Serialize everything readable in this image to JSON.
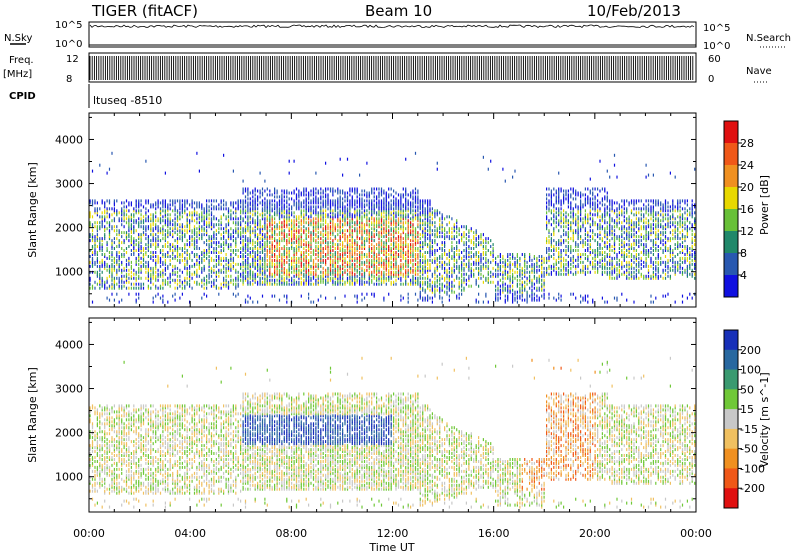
{
  "header": {
    "radar": "TIGER (fitACF)",
    "beam": "Beam 10",
    "date": "10/Feb/2013"
  },
  "param_panel": {
    "nsky_label": "N.Sky",
    "nsky_ticks": [
      "10^5",
      "10^0"
    ],
    "nsearch_label": "N.Search",
    "nsearch_ticks": [
      "10^5",
      "10^0"
    ],
    "freq_label": "Freq.",
    "freq_unit": "[MHz]",
    "freq_ticks": [
      "12",
      "8"
    ],
    "nave_label": "Nave",
    "nave_ticks": [
      "60",
      "0"
    ],
    "cpid_label": "CPID",
    "cpid_value": "ltuseq -8510"
  },
  "chart_data": [
    {
      "type": "heatmap",
      "title": "",
      "ylabel": "Slant Range [km]",
      "ylim": [
        200,
        4600
      ],
      "yticks": [
        1000,
        2000,
        3000,
        4000
      ],
      "xlabel": "",
      "colorbar_label": "Power [dB]",
      "colorbar_range": [
        0,
        32
      ],
      "colorbar_ticks": [
        4,
        8,
        12,
        16,
        20,
        24,
        28
      ],
      "colorbar_colors": [
        "#1010e0",
        "#2858b0",
        "#20886a",
        "#68c038",
        "#e8d800",
        "#f09020",
        "#f05818",
        "#e01010"
      ]
    },
    {
      "type": "heatmap",
      "title": "",
      "ylabel": "Slant Range [km]",
      "ylim": [
        200,
        4600
      ],
      "yticks": [
        1000,
        2000,
        3000,
        4000
      ],
      "xlabel": "Time UT",
      "xticks": [
        "00:00",
        "04:00",
        "08:00",
        "12:00",
        "16:00",
        "20:00",
        "00:00"
      ],
      "colorbar_label": "Velocity [m s^-1]",
      "colorbar_ticks": [
        200,
        100,
        50,
        15,
        -15,
        -50,
        -100,
        -200
      ],
      "colorbar_colors": [
        "#1830b8",
        "#2868a0",
        "#3a9a70",
        "#70c838",
        "#c8c8c8",
        "#f0c060",
        "#f09020",
        "#f05818",
        "#e01010"
      ]
    }
  ]
}
